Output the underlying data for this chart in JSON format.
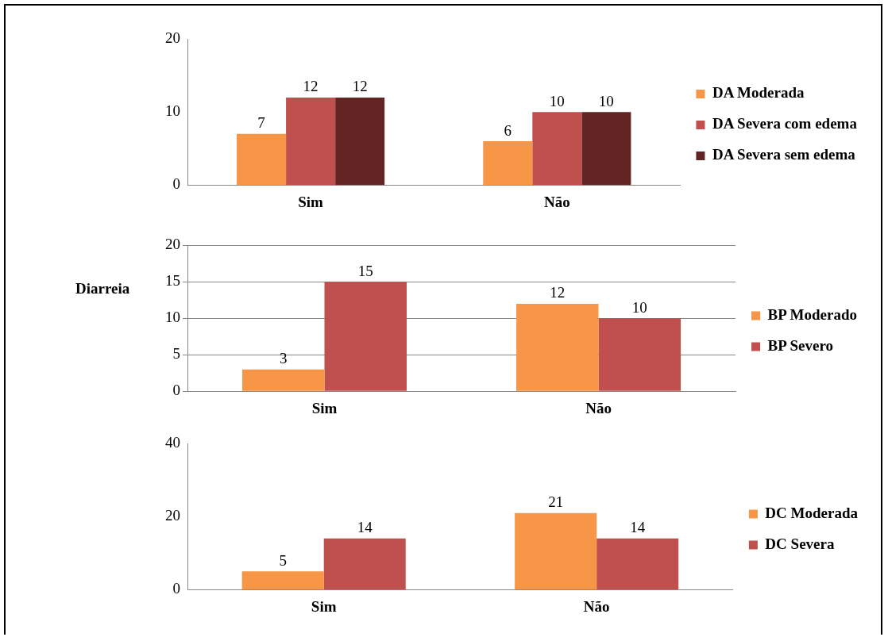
{
  "chart_data": [
    {
      "type": "bar",
      "categories": [
        "Sim",
        "Não"
      ],
      "series": [
        {
          "name": "DA Moderada",
          "color": "#f79646",
          "values": [
            7,
            6
          ]
        },
        {
          "name": "DA Severa com edema",
          "color": "#c0504d",
          "values": [
            12,
            10
          ]
        },
        {
          "name": "DA Severa sem edema",
          "color": "#632523",
          "values": [
            12,
            10
          ]
        }
      ],
      "ylim": [
        0,
        20
      ],
      "yticks": [
        0,
        10,
        20
      ],
      "grid": false,
      "legend": "right",
      "data_labels": true
    },
    {
      "type": "bar",
      "ylabel": "Diarreia",
      "categories": [
        "Sim",
        "Não"
      ],
      "series": [
        {
          "name": "BP Moderado",
          "color": "#f79646",
          "values": [
            3,
            12
          ]
        },
        {
          "name": "BP Severo",
          "color": "#c0504d",
          "values": [
            15,
            10
          ]
        }
      ],
      "ylim": [
        0,
        20
      ],
      "yticks": [
        0,
        5,
        10,
        15,
        20
      ],
      "grid": "y",
      "legend": "right",
      "data_labels": true
    },
    {
      "type": "bar",
      "categories": [
        "Sim",
        "Não"
      ],
      "series": [
        {
          "name": "DC Moderada",
          "color": "#f79646",
          "values": [
            5,
            21
          ]
        },
        {
          "name": "DC Severa",
          "color": "#c0504d",
          "values": [
            14,
            14
          ]
        }
      ],
      "ylim": [
        0,
        40
      ],
      "yticks": [
        0,
        20,
        40
      ],
      "grid": false,
      "legend": "right",
      "data_labels": true
    }
  ]
}
